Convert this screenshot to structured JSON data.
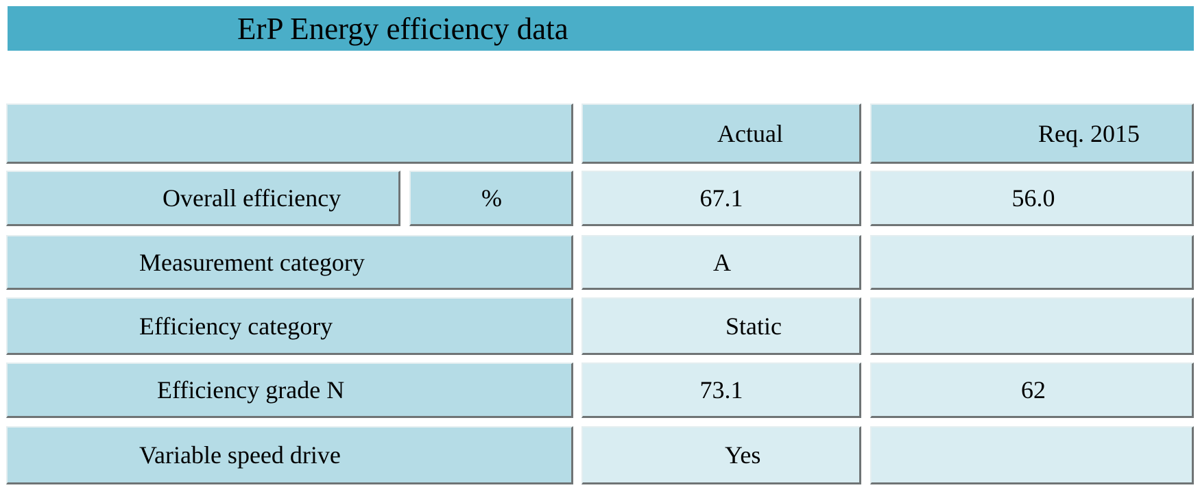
{
  "header": {
    "title": "ErP Energy efficiency data"
  },
  "table": {
    "columns": [
      "Actual",
      "Req. 2015"
    ],
    "rows": [
      {
        "label": "Overall efficiency",
        "unit": "%",
        "actual": "67.1",
        "required": "56.0"
      },
      {
        "label": "Measurement category",
        "actual": "A"
      },
      {
        "label": "Efficiency category",
        "actual": "Static"
      },
      {
        "label": "Efficiency grade N",
        "actual": "73.1",
        "required": "62"
      },
      {
        "label": "Variable speed drive",
        "actual": "Yes"
      }
    ]
  }
}
